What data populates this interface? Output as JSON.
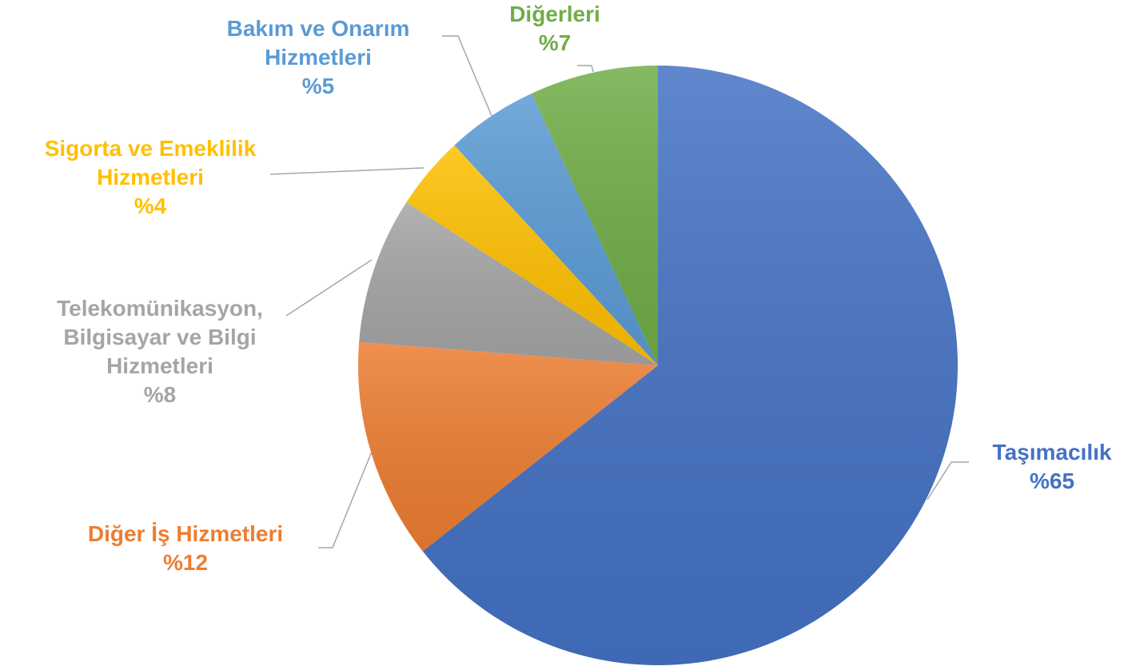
{
  "chart_data": {
    "type": "pie",
    "categories": [
      "Taşımacılık",
      "Diğer İş Hizmetleri",
      "Telekomünikasyon, Bilgisayar ve Bilgi Hizmetleri",
      "Sigorta ve Emeklilik Hizmetleri",
      "Bakım ve Onarım Hizmetleri",
      "Diğerleri"
    ],
    "values": [
      65,
      12,
      8,
      4,
      5,
      7
    ],
    "value_labels": [
      "%65",
      "%12",
      "%8",
      "%4",
      "%5",
      "%7"
    ],
    "colors": [
      "#4472c4",
      "#ed7d31",
      "#a5a5a5",
      "#ffc000",
      "#5b9bd5",
      "#70ad47"
    ]
  }
}
